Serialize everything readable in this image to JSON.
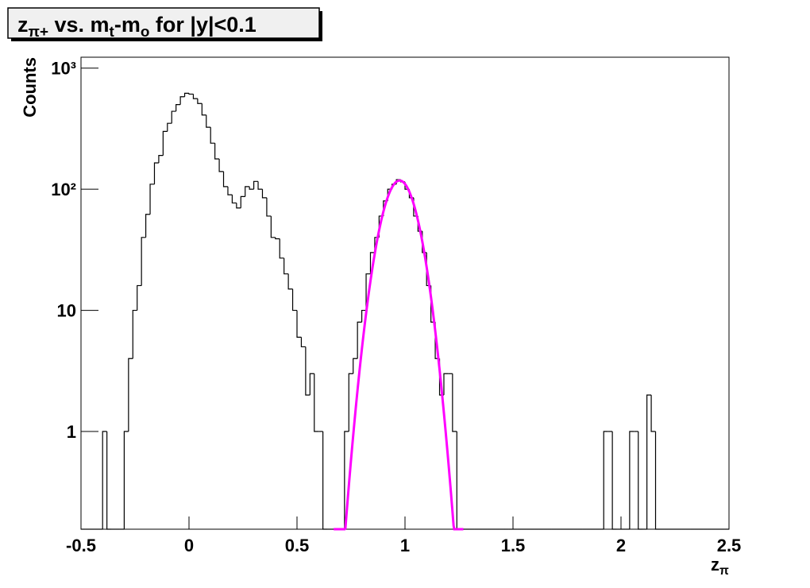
{
  "chart_data": {
    "type": "histogram",
    "title": [
      "z",
      "π+",
      " vs. m",
      "t",
      "-m",
      "o",
      " for |y|<0.1"
    ],
    "title_subscript": [
      false,
      true,
      false,
      true,
      false,
      true,
      false
    ],
    "xlabel": [
      "z",
      "π"
    ],
    "xlabel_subscript": [
      false,
      true
    ],
    "ylabel": "Counts",
    "log_y": true,
    "color": "#000000",
    "bins": [
      -0.5,
      -0.48,
      -0.46,
      -0.44,
      -0.42,
      -0.4,
      -0.38,
      -0.36,
      -0.34,
      -0.32,
      -0.3,
      -0.28,
      -0.26,
      -0.24,
      -0.22,
      -0.2,
      -0.18,
      -0.16,
      -0.14,
      -0.12,
      -0.1,
      -0.08,
      -0.06,
      -0.04,
      -0.02,
      0,
      0.02,
      0.04,
      0.06,
      0.08,
      0.1,
      0.12,
      0.14,
      0.16,
      0.18,
      0.2,
      0.22,
      0.24,
      0.26,
      0.28,
      0.3,
      0.32,
      0.34,
      0.36,
      0.38,
      0.4,
      0.42,
      0.44,
      0.46,
      0.48,
      0.5,
      0.52,
      0.54,
      0.56,
      0.58,
      0.6,
      0.62,
      0.64,
      0.66,
      0.68,
      0.7,
      0.72,
      0.74,
      0.76,
      0.78,
      0.8,
      0.82,
      0.84,
      0.86,
      0.88,
      0.9,
      0.92,
      0.94,
      0.96,
      0.98,
      1,
      1.02,
      1.04,
      1.06,
      1.08,
      1.1,
      1.12,
      1.14,
      1.16,
      1.18,
      1.2,
      1.22,
      1.24,
      1.26,
      1.28,
      1.3,
      1.32,
      1.34,
      1.36,
      1.38,
      1.4,
      1.42,
      1.44,
      1.46,
      1.48,
      1.5,
      1.52,
      1.54,
      1.56,
      1.58,
      1.6,
      1.62,
      1.64,
      1.66,
      1.68,
      1.7,
      1.72,
      1.74,
      1.76,
      1.78,
      1.8,
      1.82,
      1.84,
      1.86,
      1.88,
      1.9,
      1.92,
      1.94,
      1.96,
      1.98,
      2,
      2.02,
      2.04,
      2.06,
      2.08,
      2.1,
      2.12,
      2.14,
      2.16,
      2.18,
      2.2,
      2.22,
      2.24,
      2.26,
      2.28,
      2.3,
      2.32,
      2.34,
      2.36,
      2.38,
      2.4,
      2.42,
      2.44,
      2.46,
      2.48,
      2.5
    ],
    "values": [
      0,
      0,
      0,
      0,
      0,
      1,
      0,
      0,
      0,
      0,
      1,
      4,
      10,
      16,
      40,
      62,
      110,
      165,
      190,
      300,
      350,
      440,
      500,
      580,
      620,
      610,
      560,
      510,
      410,
      325,
      240,
      178,
      140,
      105,
      90,
      77,
      70,
      87,
      105,
      100,
      116,
      100,
      85,
      60,
      40,
      39,
      27,
      20,
      15,
      10,
      6,
      5,
      2,
      3,
      1,
      1,
      0,
      0,
      0,
      0,
      0,
      1,
      3,
      4,
      8,
      10,
      20,
      30,
      40,
      60,
      80,
      100,
      110,
      120,
      115,
      100,
      85,
      60,
      45,
      30,
      16,
      8,
      4,
      2,
      3,
      3,
      1,
      0,
      0,
      0,
      0,
      0,
      0,
      0,
      0,
      0,
      0,
      0,
      0,
      0,
      0,
      0,
      0,
      0,
      0,
      0,
      0,
      0,
      0,
      0,
      0,
      0,
      0,
      0,
      0,
      0,
      0,
      0,
      0,
      0,
      0,
      1,
      1,
      0,
      0,
      0,
      0,
      1,
      1,
      0,
      0,
      2,
      1,
      0,
      0,
      0,
      0,
      0,
      0,
      0,
      0,
      0,
      0,
      0,
      0,
      0,
      0,
      0,
      0,
      0
    ],
    "fit": {
      "function": "gaus",
      "constant": 118,
      "mean": 0.975,
      "sigma": 0.069,
      "range": [
        0.67,
        1.27
      ],
      "color": "#ff00ff"
    },
    "xlim": [
      -0.5,
      2.5
    ],
    "xticks": [
      -0.5,
      0,
      0.5,
      1,
      1.5,
      2,
      2.5
    ],
    "ylim": [
      0.156,
      1230
    ],
    "yticks": [
      1,
      10,
      {
        "value": 100,
        "label": "10²"
      },
      {
        "value": 1000,
        "label": "10³"
      }
    ]
  }
}
